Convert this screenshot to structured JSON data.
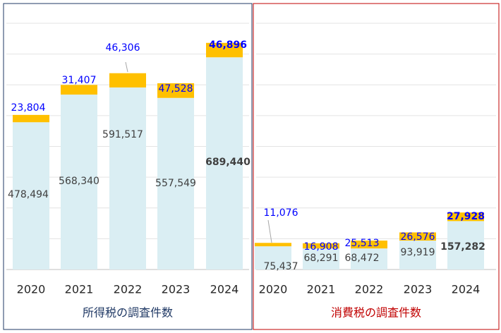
{
  "chart_data": [
    {
      "type": "bar",
      "stacked": true,
      "title": "所得税の調査件数",
      "title_color": "#1f3864",
      "border_color": "#1f3864",
      "categories": [
        "2020",
        "2021",
        "2022",
        "2023",
        "2024"
      ],
      "ylim": [
        0,
        800000
      ],
      "yticks": [
        0,
        100000,
        200000,
        300000,
        400000,
        500000,
        600000,
        700000,
        800000
      ],
      "grid": true,
      "series": [
        {
          "color": "#daeef3",
          "label_color": "#404040",
          "values": [
            478494,
            568340,
            591517,
            557549,
            689440
          ],
          "value_labels": [
            "478,494",
            "568,340",
            "591,517",
            "557,549",
            "689,440"
          ]
        },
        {
          "color": "#ffc000",
          "label_color": "#0000ff",
          "values": [
            23804,
            31407,
            46306,
            47528,
            46896
          ],
          "value_labels": [
            "23,804",
            "31,407",
            "46,306",
            "47,528",
            "46,896"
          ]
        }
      ]
    },
    {
      "type": "bar",
      "stacked": true,
      "title": "消費税の調査件数",
      "title_color": "#c00000",
      "border_color": "#c00000",
      "categories": [
        "2020",
        "2021",
        "2022",
        "2023",
        "2024"
      ],
      "ylim": [
        0,
        800000
      ],
      "yticks": [
        0,
        100000,
        200000,
        300000,
        400000,
        500000,
        600000,
        700000,
        800000
      ],
      "grid": true,
      "series": [
        {
          "color": "#daeef3",
          "label_color": "#404040",
          "values": [
            75437,
            68291,
            68472,
            93919,
            157282
          ],
          "value_labels": [
            "75,437",
            "68,291",
            "68,472",
            "93,919",
            "157,282"
          ]
        },
        {
          "color": "#ffc000",
          "label_color": "#0000ff",
          "values": [
            11076,
            16908,
            25513,
            26576,
            27928
          ],
          "value_labels": [
            "11,076",
            "16,908",
            "25,513",
            "26,576",
            "27,928"
          ]
        }
      ]
    }
  ]
}
